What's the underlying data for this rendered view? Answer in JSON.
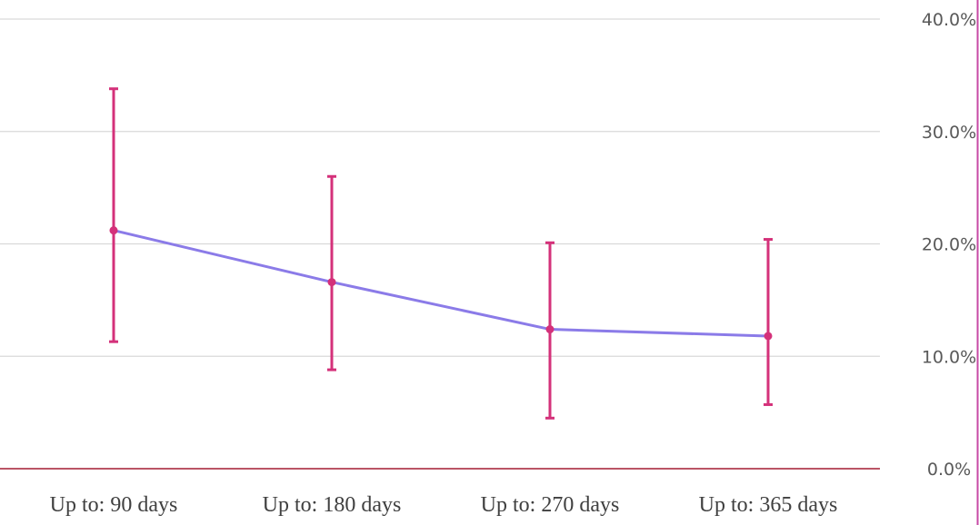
{
  "chart_data": {
    "type": "line",
    "title": "",
    "xlabel": "",
    "ylabel": "",
    "categories": [
      "Up to: 90 days",
      "Up to: 180 days",
      "Up to: 270 days",
      "Up to: 365 days"
    ],
    "series": [
      {
        "values": [
          0.212,
          0.166,
          0.124,
          0.118
        ],
        "error_low": [
          0.113,
          0.088,
          0.045,
          0.057
        ],
        "error_high": [
          0.338,
          0.26,
          0.201,
          0.204
        ]
      }
    ],
    "ylim": [
      0,
      0.4
    ],
    "y_ticks": [
      0,
      0.1,
      0.2,
      0.3,
      0.4
    ],
    "y_tick_labels": [
      "0.0%",
      "10.0%",
      "20.0%",
      "30.0%",
      "40.0%"
    ],
    "y_axis_side": "right",
    "grid": true,
    "legend": "none",
    "colors": {
      "line": "#8B7BE8",
      "error_bar": "#D4317A",
      "marker": "#D4317A",
      "baseline": "#A31B32",
      "gridline": "#D9D9D9",
      "right_border": "#C74AA6"
    }
  }
}
